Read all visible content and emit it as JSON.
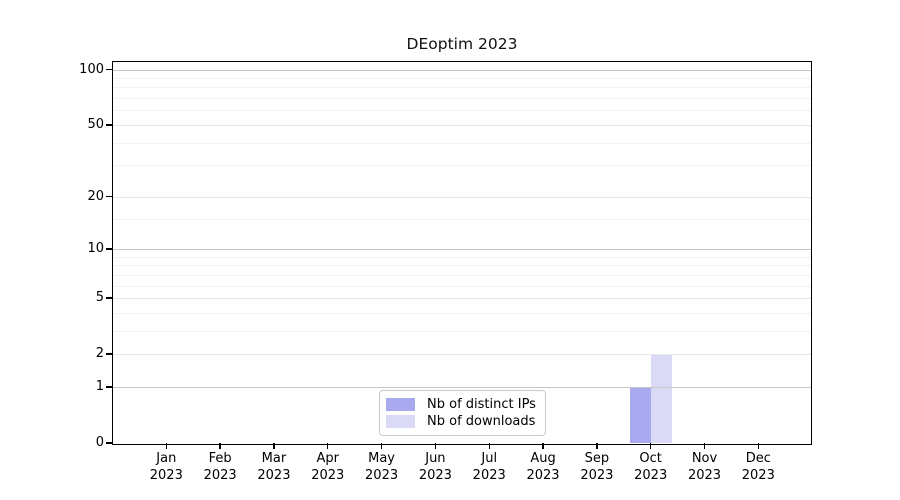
{
  "figure": {
    "title": "DEoptim 2023",
    "background": "#ffffff"
  },
  "legend": {
    "items": [
      {
        "label": "Nb of distinct IPs",
        "color": "#a9a9ef"
      },
      {
        "label": "Nb of downloads",
        "color": "#dadaf7"
      }
    ],
    "border_color": "#c9c9c9",
    "position": "bottom-center"
  },
  "chart_data": {
    "type": "bar",
    "title": "DEoptim 2023",
    "categories": [
      "Jan 2023",
      "Feb 2023",
      "Mar 2023",
      "Apr 2023",
      "May 2023",
      "Jun 2023",
      "Jul 2023",
      "Aug 2023",
      "Sep 2023",
      "Oct 2023",
      "Nov 2023",
      "Dec 2023"
    ],
    "series": [
      {
        "name": "Nb of distinct IPs",
        "color": "#a9a9ef",
        "values": [
          0,
          0,
          0,
          0,
          0,
          0,
          0,
          0,
          0,
          1,
          0,
          0
        ]
      },
      {
        "name": "Nb of downloads",
        "color": "#dadaf7",
        "values": [
          0,
          0,
          0,
          0,
          0,
          0,
          0,
          0,
          0,
          2,
          0,
          0
        ]
      }
    ],
    "xlabel": "",
    "ylabel": "",
    "y_scale": "log10(1+x)",
    "ylim": [
      0,
      110
    ],
    "y_ticks": [
      0,
      1,
      2,
      5,
      10,
      20,
      50,
      100
    ],
    "y_minor_ticks": [
      3,
      4,
      6,
      7,
      8,
      9,
      15,
      30,
      40,
      60,
      70,
      80,
      90
    ],
    "grid": true,
    "grid_colors": {
      "decade": "#c6c6c6",
      "labeled": "#e6e6e6",
      "minor": "#f2f2f2"
    },
    "legend_position": "bottom-center"
  }
}
